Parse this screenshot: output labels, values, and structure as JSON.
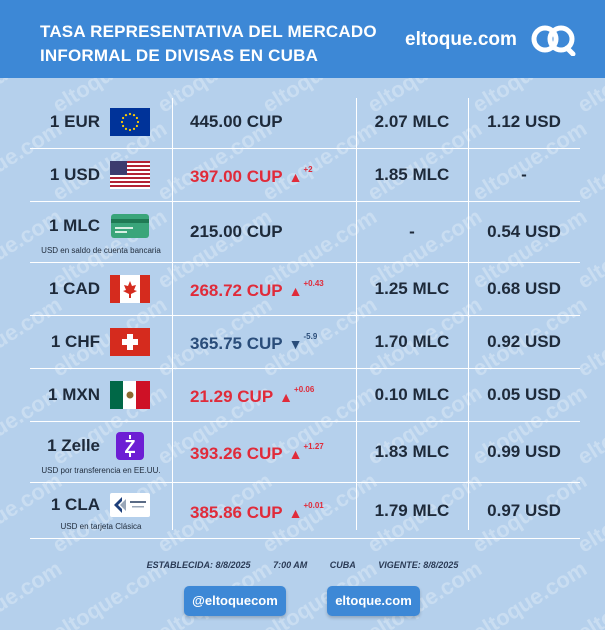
{
  "header": {
    "title_line1": "TASA REPRESENTATIVA DEL MERCADO",
    "title_line2": "INFORMAL DE DIVISAS EN CUBA",
    "brand": "eltoque.com"
  },
  "watermark_text": "eltoque.com",
  "colors": {
    "header_bg": "#3d88d6",
    "page_bg": "#b5d0ec",
    "up": "#e02b3a",
    "down": "#2a4d7a",
    "neutral": "#1e2a3a"
  },
  "rows": [
    {
      "currency": "1 EUR",
      "flag": "eu-flag",
      "note": "",
      "cup": "445.00 CUP",
      "trend": "none",
      "change": "",
      "mlc": "2.07 MLC",
      "usd": "1.12 USD"
    },
    {
      "currency": "1 USD",
      "flag": "us-flag",
      "note": "",
      "cup": "397.00 CUP",
      "trend": "up",
      "change": "+2",
      "mlc": "1.85 MLC",
      "usd": "-"
    },
    {
      "currency": "1 MLC",
      "flag": "mlc-card",
      "note": "USD en saldo de cuenta bancaria",
      "cup": "215.00 CUP",
      "trend": "none",
      "change": "",
      "mlc": "-",
      "usd": "0.54 USD"
    },
    {
      "currency": "1 CAD",
      "flag": "canada-flag",
      "note": "",
      "cup": "268.72 CUP",
      "trend": "up",
      "change": "+0.43",
      "mlc": "1.25 MLC",
      "usd": "0.68 USD"
    },
    {
      "currency": "1 CHF",
      "flag": "swiss-flag",
      "note": "",
      "cup": "365.75 CUP",
      "trend": "down",
      "change": "-5.9",
      "mlc": "1.70 MLC",
      "usd": "0.92 USD"
    },
    {
      "currency": "1 MXN",
      "flag": "mexico-flag",
      "note": "",
      "cup": "21.29 CUP",
      "trend": "up",
      "change": "+0.06",
      "mlc": "0.10 MLC",
      "usd": "0.05 USD"
    },
    {
      "currency": "1 Zelle",
      "flag": "zelle-logo",
      "note": "USD por transferencia en EE.UU.",
      "cup": "393.26 CUP",
      "trend": "up",
      "change": "+1.27",
      "mlc": "1.83 MLC",
      "usd": "0.99 USD"
    },
    {
      "currency": "1 CLA",
      "flag": "clasica-card",
      "note": "USD en tarjeta Clásica",
      "cup": "385.86 CUP",
      "trend": "up",
      "change": "+0.01",
      "mlc": "1.79 MLC",
      "usd": "0.97 USD"
    }
  ],
  "footer": {
    "established": "ESTABLECIDA: 8/8/2025",
    "time": "7:00 AM",
    "location": "CUBA",
    "valid": "VIGENTE: 8/8/2025",
    "button_social": "@eltoquecom",
    "button_site": "eltoque.com"
  }
}
